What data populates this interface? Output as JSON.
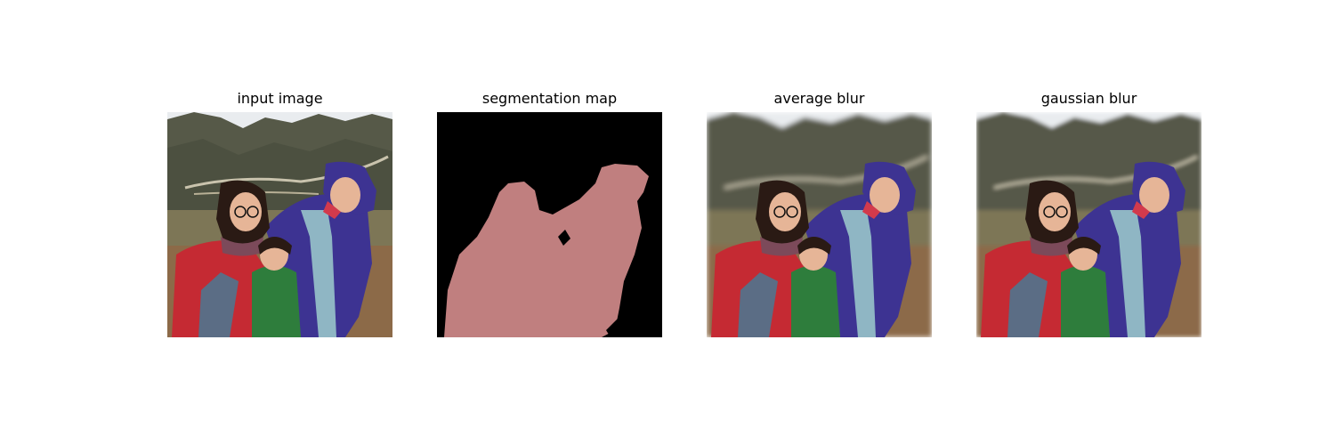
{
  "panels": [
    {
      "title": "input image"
    },
    {
      "title": "segmentation map"
    },
    {
      "title": "average blur"
    },
    {
      "title": "gaussian blur"
    }
  ],
  "colors": {
    "background": "#ffffff",
    "mask_foreground": "#c07f7f",
    "mask_background": "#000000",
    "sky": "#e9ecef",
    "mountain": "#565948",
    "terrace": "#8a8467",
    "ground": "#8c6a48",
    "red_jacket": "#c52a33",
    "purple_jacket": "#3d3392",
    "green_jacket": "#2e7d3c",
    "skin": "#e6b597",
    "hair": "#2a1a14"
  }
}
